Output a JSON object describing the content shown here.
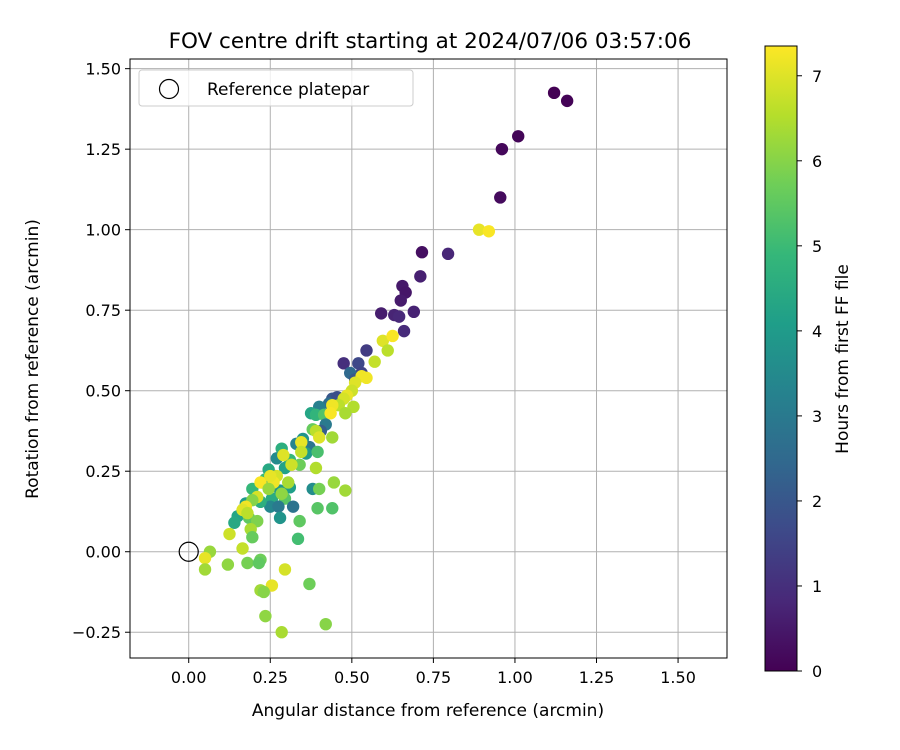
{
  "chart_data": {
    "type": "scatter",
    "title": "FOV centre drift starting at 2024/07/06 03:57:06",
    "xlabel": "Angular distance from reference (arcmin)",
    "ylabel": "Rotation from reference (arcmin)",
    "xlim": [
      -0.18,
      1.65
    ],
    "ylim": [
      -0.33,
      1.53
    ],
    "xticks": [
      0.0,
      0.25,
      0.5,
      0.75,
      1.0,
      1.25,
      1.5
    ],
    "xtick_labels": [
      "0.00",
      "0.25",
      "0.50",
      "0.75",
      "1.00",
      "1.25",
      "1.50"
    ],
    "yticks": [
      -0.25,
      0.0,
      0.25,
      0.5,
      0.75,
      1.0,
      1.25,
      1.5
    ],
    "ytick_labels": [
      "−0.25",
      "0.00",
      "0.25",
      "0.50",
      "0.75",
      "1.00",
      "1.25",
      "1.50"
    ],
    "grid": true,
    "legend": {
      "location": "upper-left",
      "entries": [
        "Reference platepar"
      ]
    },
    "reference_point": {
      "x": 0.0,
      "y": 0.0,
      "marker": "open-circle",
      "color": "#000000"
    },
    "colorbar": {
      "label": "Hours from first FF file",
      "colormap": "viridis",
      "range": [
        0,
        7.35
      ],
      "ticks": [
        0,
        1,
        2,
        3,
        4,
        5,
        6,
        7
      ],
      "tick_labels": [
        "0",
        "1",
        "2",
        "3",
        "4",
        "5",
        "6",
        "7"
      ],
      "stops": [
        "#440154",
        "#482878",
        "#3e4989",
        "#31688e",
        "#26828e",
        "#1f9e89",
        "#35b779",
        "#6ece58",
        "#b5de2b",
        "#fde725"
      ]
    },
    "points": [
      {
        "x": 1.12,
        "y": 1.425,
        "c": 0.0
      },
      {
        "x": 1.16,
        "y": 1.4,
        "c": 0.05
      },
      {
        "x": 1.01,
        "y": 1.29,
        "c": 0.1
      },
      {
        "x": 0.96,
        "y": 1.25,
        "c": 0.15
      },
      {
        "x": 0.955,
        "y": 1.1,
        "c": 0.2
      },
      {
        "x": 0.715,
        "y": 0.93,
        "c": 0.3
      },
      {
        "x": 0.795,
        "y": 0.925,
        "c": 0.8
      },
      {
        "x": 0.71,
        "y": 0.855,
        "c": 0.65
      },
      {
        "x": 0.655,
        "y": 0.825,
        "c": 0.5
      },
      {
        "x": 0.665,
        "y": 0.805,
        "c": 0.45
      },
      {
        "x": 0.65,
        "y": 0.78,
        "c": 0.55
      },
      {
        "x": 0.59,
        "y": 0.74,
        "c": 0.6
      },
      {
        "x": 0.69,
        "y": 0.745,
        "c": 0.7
      },
      {
        "x": 0.63,
        "y": 0.735,
        "c": 0.75
      },
      {
        "x": 0.645,
        "y": 0.73,
        "c": 0.85
      },
      {
        "x": 0.66,
        "y": 0.685,
        "c": 0.9
      },
      {
        "x": 0.545,
        "y": 0.625,
        "c": 1.3
      },
      {
        "x": 0.475,
        "y": 0.585,
        "c": 1.0
      },
      {
        "x": 0.52,
        "y": 0.585,
        "c": 1.6
      },
      {
        "x": 0.53,
        "y": 0.555,
        "c": 1.5
      },
      {
        "x": 0.495,
        "y": 0.555,
        "c": 2.5
      },
      {
        "x": 0.51,
        "y": 0.535,
        "c": 2.0
      },
      {
        "x": 0.44,
        "y": 0.475,
        "c": 2.0
      },
      {
        "x": 0.455,
        "y": 0.48,
        "c": 1.8
      },
      {
        "x": 0.43,
        "y": 0.46,
        "c": 2.6
      },
      {
        "x": 0.4,
        "y": 0.45,
        "c": 3.2
      },
      {
        "x": 0.375,
        "y": 0.43,
        "c": 4.3
      },
      {
        "x": 0.39,
        "y": 0.425,
        "c": 4.8
      },
      {
        "x": 0.415,
        "y": 0.425,
        "c": 5.3
      },
      {
        "x": 0.42,
        "y": 0.395,
        "c": 3.0
      },
      {
        "x": 0.38,
        "y": 0.38,
        "c": 5.6
      },
      {
        "x": 0.405,
        "y": 0.375,
        "c": 2.2
      },
      {
        "x": 0.35,
        "y": 0.35,
        "c": 3.8
      },
      {
        "x": 0.33,
        "y": 0.335,
        "c": 3.3
      },
      {
        "x": 0.37,
        "y": 0.325,
        "c": 2.9
      },
      {
        "x": 0.285,
        "y": 0.32,
        "c": 4.6
      },
      {
        "x": 0.36,
        "y": 0.305,
        "c": 4.0
      },
      {
        "x": 0.395,
        "y": 0.31,
        "c": 5.2
      },
      {
        "x": 0.27,
        "y": 0.29,
        "c": 3.5
      },
      {
        "x": 0.31,
        "y": 0.285,
        "c": 4.9
      },
      {
        "x": 0.34,
        "y": 0.27,
        "c": 5.7
      },
      {
        "x": 0.295,
        "y": 0.26,
        "c": 4.2
      },
      {
        "x": 0.245,
        "y": 0.255,
        "c": 4.4
      },
      {
        "x": 0.265,
        "y": 0.235,
        "c": 3.1
      },
      {
        "x": 0.235,
        "y": 0.225,
        "c": 5.0
      },
      {
        "x": 0.225,
        "y": 0.215,
        "c": 4.7
      },
      {
        "x": 0.31,
        "y": 0.2,
        "c": 4.1
      },
      {
        "x": 0.38,
        "y": 0.195,
        "c": 3.6
      },
      {
        "x": 0.195,
        "y": 0.195,
        "c": 4.9
      },
      {
        "x": 0.28,
        "y": 0.19,
        "c": 3.9
      },
      {
        "x": 0.255,
        "y": 0.165,
        "c": 4.5
      },
      {
        "x": 0.295,
        "y": 0.165,
        "c": 5.4
      },
      {
        "x": 0.25,
        "y": 0.14,
        "c": 3.4
      },
      {
        "x": 0.275,
        "y": 0.14,
        "c": 3.0
      },
      {
        "x": 0.32,
        "y": 0.14,
        "c": 2.8
      },
      {
        "x": 0.22,
        "y": 0.155,
        "c": 4.6
      },
      {
        "x": 0.175,
        "y": 0.15,
        "c": 4.0
      },
      {
        "x": 0.165,
        "y": 0.125,
        "c": 5.3
      },
      {
        "x": 0.15,
        "y": 0.11,
        "c": 4.3
      },
      {
        "x": 0.185,
        "y": 0.105,
        "c": 5.5
      },
      {
        "x": 0.28,
        "y": 0.105,
        "c": 3.8
      },
      {
        "x": 0.14,
        "y": 0.09,
        "c": 4.4
      },
      {
        "x": 0.21,
        "y": 0.095,
        "c": 5.9
      },
      {
        "x": 0.19,
        "y": 0.07,
        "c": 6.4
      },
      {
        "x": 0.125,
        "y": 0.055,
        "c": 6.8
      },
      {
        "x": 0.195,
        "y": 0.045,
        "c": 5.6
      },
      {
        "x": 0.335,
        "y": 0.04,
        "c": 5.1
      },
      {
        "x": 0.34,
        "y": 0.095,
        "c": 5.5
      },
      {
        "x": 0.395,
        "y": 0.135,
        "c": 5.4
      },
      {
        "x": 0.44,
        "y": 0.135,
        "c": 5.3
      },
      {
        "x": 0.445,
        "y": 0.215,
        "c": 6.2
      },
      {
        "x": 0.48,
        "y": 0.19,
        "c": 6.3
      },
      {
        "x": 0.4,
        "y": 0.195,
        "c": 5.8
      },
      {
        "x": 0.165,
        "y": 0.01,
        "c": 6.7
      },
      {
        "x": 0.065,
        "y": 0.0,
        "c": 6.2
      },
      {
        "x": 0.05,
        "y": -0.02,
        "c": 7.1
      },
      {
        "x": 0.05,
        "y": -0.055,
        "c": 6.3
      },
      {
        "x": 0.12,
        "y": -0.04,
        "c": 6.1
      },
      {
        "x": 0.18,
        "y": -0.035,
        "c": 5.8
      },
      {
        "x": 0.22,
        "y": -0.025,
        "c": 5.7
      },
      {
        "x": 0.215,
        "y": -0.035,
        "c": 5.5
      },
      {
        "x": 0.295,
        "y": -0.055,
        "c": 6.9
      },
      {
        "x": 0.255,
        "y": -0.105,
        "c": 7.1
      },
      {
        "x": 0.22,
        "y": -0.12,
        "c": 6.3
      },
      {
        "x": 0.23,
        "y": -0.125,
        "c": 6.0
      },
      {
        "x": 0.37,
        "y": -0.1,
        "c": 5.7
      },
      {
        "x": 0.235,
        "y": -0.2,
        "c": 6.1
      },
      {
        "x": 0.285,
        "y": -0.25,
        "c": 6.4
      },
      {
        "x": 0.42,
        "y": -0.225,
        "c": 6.0
      },
      {
        "x": 0.89,
        "y": 1.0,
        "c": 7.1
      },
      {
        "x": 0.92,
        "y": 0.995,
        "c": 7.3
      },
      {
        "x": 0.595,
        "y": 0.655,
        "c": 7.0
      },
      {
        "x": 0.625,
        "y": 0.67,
        "c": 7.3
      },
      {
        "x": 0.61,
        "y": 0.625,
        "c": 6.6
      },
      {
        "x": 0.57,
        "y": 0.59,
        "c": 6.7
      },
      {
        "x": 0.53,
        "y": 0.545,
        "c": 7.2
      },
      {
        "x": 0.545,
        "y": 0.54,
        "c": 7.2
      },
      {
        "x": 0.51,
        "y": 0.525,
        "c": 7.0
      },
      {
        "x": 0.5,
        "y": 0.5,
        "c": 6.8
      },
      {
        "x": 0.485,
        "y": 0.485,
        "c": 7.1
      },
      {
        "x": 0.475,
        "y": 0.475,
        "c": 6.9
      },
      {
        "x": 0.46,
        "y": 0.455,
        "c": 6.6
      },
      {
        "x": 0.44,
        "y": 0.455,
        "c": 7.2
      },
      {
        "x": 0.435,
        "y": 0.43,
        "c": 7.3
      },
      {
        "x": 0.505,
        "y": 0.45,
        "c": 6.5
      },
      {
        "x": 0.48,
        "y": 0.43,
        "c": 6.4
      },
      {
        "x": 0.44,
        "y": 0.355,
        "c": 6.3
      },
      {
        "x": 0.39,
        "y": 0.375,
        "c": 6.6
      },
      {
        "x": 0.4,
        "y": 0.355,
        "c": 7.0
      },
      {
        "x": 0.345,
        "y": 0.34,
        "c": 7.1
      },
      {
        "x": 0.345,
        "y": 0.31,
        "c": 6.7
      },
      {
        "x": 0.29,
        "y": 0.3,
        "c": 7.0
      },
      {
        "x": 0.315,
        "y": 0.27,
        "c": 6.8
      },
      {
        "x": 0.39,
        "y": 0.26,
        "c": 6.5
      },
      {
        "x": 0.27,
        "y": 0.235,
        "c": 6.9
      },
      {
        "x": 0.26,
        "y": 0.215,
        "c": 7.2
      },
      {
        "x": 0.22,
        "y": 0.215,
        "c": 7.3
      },
      {
        "x": 0.305,
        "y": 0.215,
        "c": 6.4
      },
      {
        "x": 0.245,
        "y": 0.195,
        "c": 6.2
      },
      {
        "x": 0.285,
        "y": 0.18,
        "c": 6.1
      },
      {
        "x": 0.21,
        "y": 0.17,
        "c": 6.9
      },
      {
        "x": 0.195,
        "y": 0.16,
        "c": 6.0
      },
      {
        "x": 0.175,
        "y": 0.14,
        "c": 7.2
      },
      {
        "x": 0.165,
        "y": 0.13,
        "c": 7.0
      },
      {
        "x": 0.18,
        "y": 0.12,
        "c": 6.6
      },
      {
        "x": 0.25,
        "y": 0.235,
        "c": 7.1
      }
    ]
  }
}
